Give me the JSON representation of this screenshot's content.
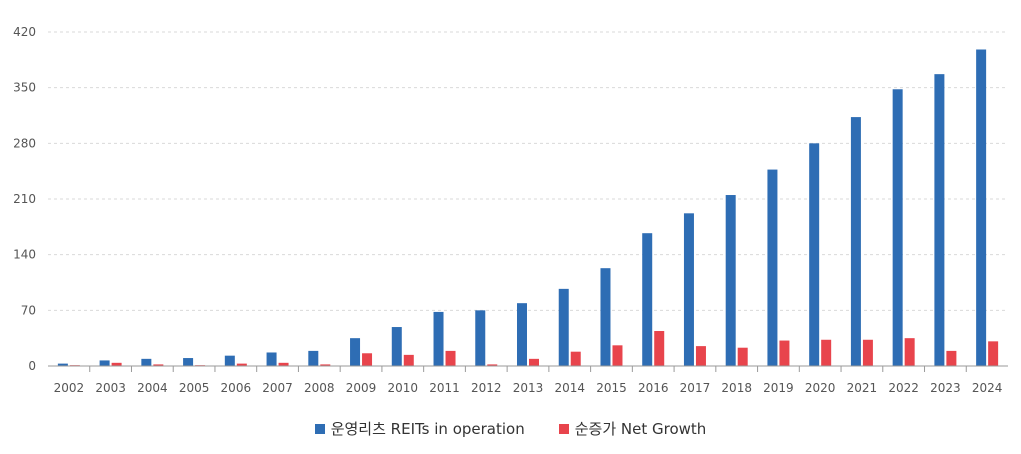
{
  "chart_data": {
    "type": "bar",
    "categories": [
      "2002",
      "2003",
      "2004",
      "2005",
      "2006",
      "2007",
      "2008",
      "2009",
      "2010",
      "2011",
      "2012",
      "2013",
      "2014",
      "2015",
      "2016",
      "2017",
      "2018",
      "2019",
      "2020",
      "2021",
      "2022",
      "2023",
      "2024"
    ],
    "series": [
      {
        "name": "운영리츠 REITs in operation",
        "color": "#2e6db4",
        "values": [
          3,
          7,
          9,
          10,
          13,
          17,
          19,
          35,
          49,
          68,
          70,
          79,
          97,
          123,
          167,
          192,
          215,
          247,
          280,
          313,
          348,
          367,
          398
        ]
      },
      {
        "name": "순증가 Net Growth",
        "color": "#e8444c",
        "values": [
          0,
          4,
          2,
          1,
          3,
          4,
          2,
          16,
          14,
          19,
          2,
          9,
          18,
          26,
          44,
          25,
          23,
          32,
          33,
          33,
          35,
          19,
          31
        ]
      }
    ],
    "yticks": [
      0,
      70,
      140,
      210,
      280,
      350,
      420
    ],
    "ylim": [
      0,
      420
    ],
    "grid": true,
    "legend_position": "bottom"
  }
}
